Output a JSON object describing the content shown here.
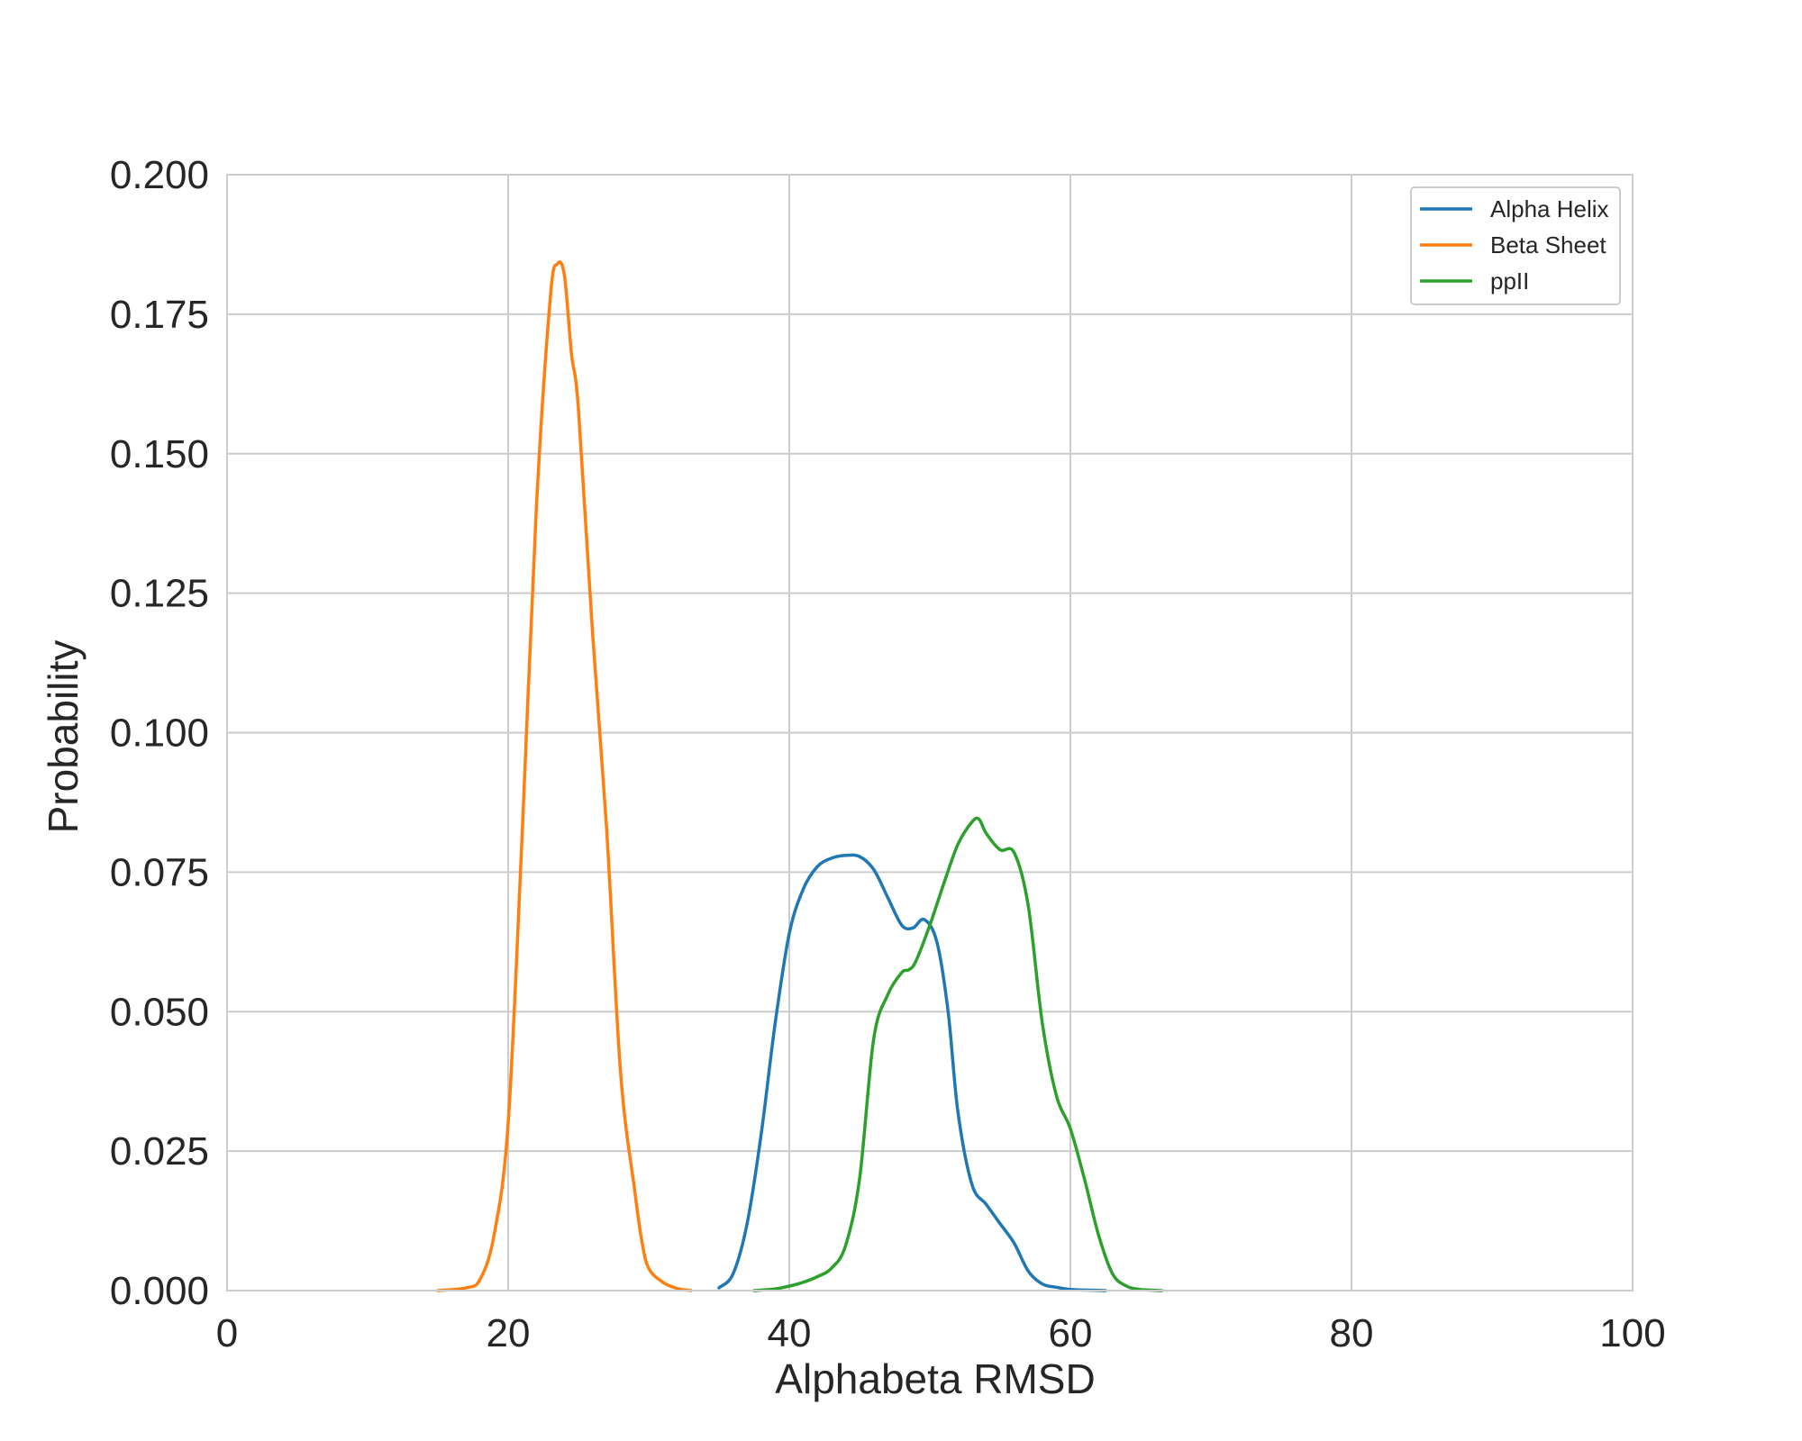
{
  "chart_data": {
    "type": "line",
    "title": "",
    "xlabel": "Alphabeta RMSD",
    "ylabel": "Probability",
    "xlim": [
      0,
      100
    ],
    "ylim": [
      0,
      0.2
    ],
    "xticks": [
      0,
      20,
      40,
      60,
      80,
      100
    ],
    "xtick_labels": [
      "0",
      "20",
      "40",
      "60",
      "80",
      "100"
    ],
    "yticks": [
      0,
      0.025,
      0.05,
      0.075,
      0.1,
      0.125,
      0.15,
      0.175,
      0.2
    ],
    "ytick_labels": [
      "0.000",
      "0.025",
      "0.050",
      "0.075",
      "0.100",
      "0.125",
      "0.150",
      "0.175",
      "0.200"
    ],
    "grid": true,
    "legend_position": "top-right",
    "series": [
      {
        "name": "Alpha Helix",
        "color": "#1f77b4",
        "x": [
          35,
          36,
          37,
          38,
          39,
          40,
          41,
          42,
          43,
          44,
          45,
          46,
          47,
          48,
          48.8,
          49.6,
          50.5,
          51.3,
          52,
          53,
          54,
          55,
          56,
          57,
          58,
          59,
          60,
          61,
          62.5
        ],
        "y": [
          0.0005,
          0.003,
          0.012,
          0.028,
          0.048,
          0.064,
          0.072,
          0.076,
          0.0775,
          0.078,
          0.0778,
          0.0755,
          0.0705,
          0.0655,
          0.065,
          0.0665,
          0.0625,
          0.05,
          0.032,
          0.019,
          0.0155,
          0.012,
          0.0085,
          0.0035,
          0.0012,
          0.0006,
          0.0002,
          0.0001,
          0
        ]
      },
      {
        "name": "Beta Sheet",
        "color": "#ff7f0e",
        "x": [
          15,
          17,
          18,
          19,
          20,
          21,
          22,
          23,
          23.5,
          24,
          24.5,
          25,
          26,
          27,
          28,
          29,
          29.5,
          30,
          31,
          32,
          33
        ],
        "y": [
          0,
          0.0005,
          0.002,
          0.01,
          0.03,
          0.082,
          0.14,
          0.178,
          0.184,
          0.182,
          0.168,
          0.158,
          0.118,
          0.083,
          0.039,
          0.018,
          0.009,
          0.004,
          0.0015,
          0.0004,
          0
        ]
      },
      {
        "name": "ppII",
        "color": "#2ca02c",
        "x": [
          37.5,
          39,
          40,
          41,
          42,
          43,
          44,
          45,
          46,
          47,
          48,
          48.5,
          49,
          50,
          51,
          52,
          53,
          53.5,
          54,
          55,
          56,
          57,
          58,
          59,
          60,
          61,
          62,
          63,
          64,
          65,
          66.5
        ],
        "y": [
          0,
          0.0003,
          0.0008,
          0.0015,
          0.0025,
          0.004,
          0.008,
          0.02,
          0.045,
          0.053,
          0.057,
          0.0575,
          0.059,
          0.0655,
          0.073,
          0.08,
          0.084,
          0.0845,
          0.082,
          0.079,
          0.0785,
          0.069,
          0.048,
          0.035,
          0.029,
          0.02,
          0.01,
          0.003,
          0.0008,
          0.0002,
          0
        ]
      }
    ]
  }
}
